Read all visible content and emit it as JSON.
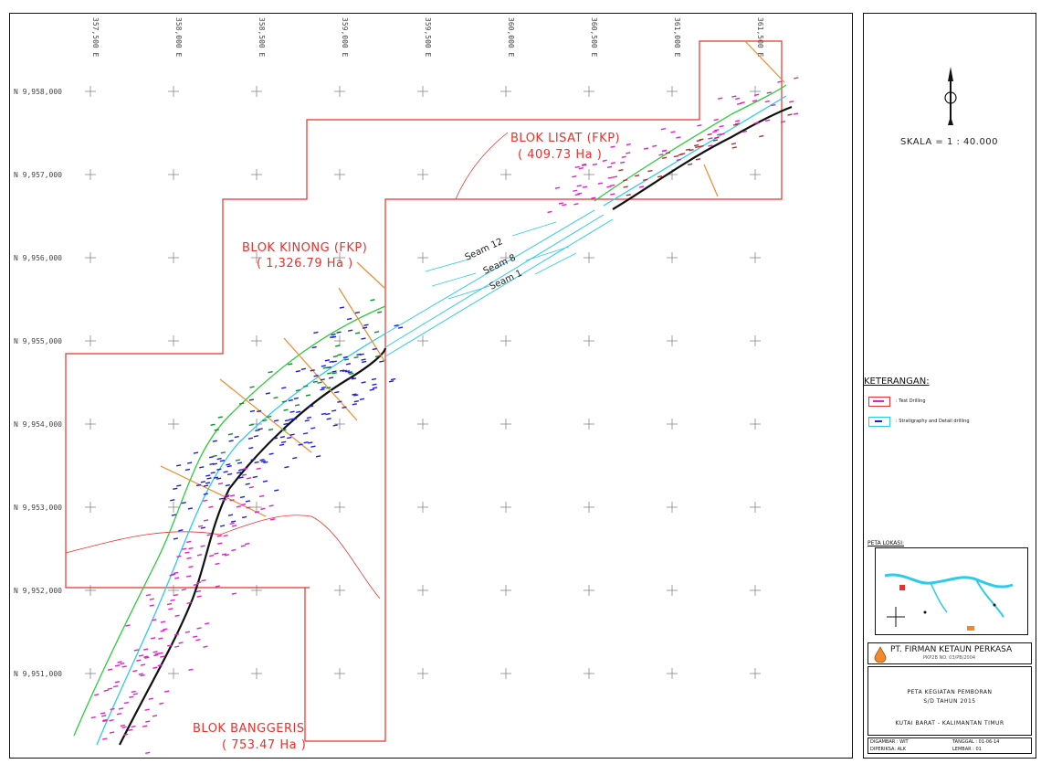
{
  "map": {
    "easting_labels": [
      "357,500 E",
      "358,000 E",
      "358,500 E",
      "359,000 E",
      "359,500 E",
      "360,000 E",
      "360,500 E",
      "361,000 E",
      "361,500 E"
    ],
    "northing_labels": [
      "N 9,958,000",
      "N 9,957,000",
      "N 9,956,000",
      "N 9,955,000",
      "N 9,954,000",
      "N 9,953,000",
      "N 9,952,000",
      "N 9,951,000"
    ],
    "blocks": [
      {
        "name": "BLOK LISAT (FKP)",
        "area": "( 409.73 Ha )"
      },
      {
        "name": "BLOK KINONG (FKP)",
        "area": "( 1,326.79 Ha )"
      },
      {
        "name": "BLOK BANGGERIS",
        "area": "( 753.47 Ha )"
      }
    ],
    "seams": [
      "Seam 12",
      "Seam 8",
      "Seam 1"
    ],
    "colors": {
      "boundary": "#e8322c",
      "seam_line": "#2ccbe8",
      "river": "#111111",
      "section_line": "#f08a2c",
      "green_line": "#2bcc3a",
      "magenta": "#e022c8",
      "blue": "#1f1fd6"
    }
  },
  "legend": {
    "north_arrow_icon": "north-arrow-icon",
    "scale": "SKALA = 1 : 40.000",
    "title": "KETERANGAN:",
    "items": [
      {
        "label": ": Test Drilling"
      },
      {
        "label": ": Stratigraphy and Detail drilling"
      }
    ],
    "inset_title": "PETA LOKASI:",
    "company": "PT. FIRMAN KETAUN PERKASA",
    "company_sub": "PKP2B NO. 03/PB/2004",
    "map_title_1": "PETA KEGIATAN PEMBORAN",
    "map_title_2": "S/D TAHUN 2015",
    "region": "KUTAI BARAT - KALIMANTAN TIMUR",
    "signoff": {
      "drawn_label": "DIGAMBAR : WIT",
      "date_label": "TANGGAL : 01-06-14",
      "checked_label": "DIPERIKSA: ALK",
      "sheet_label": "LEMBAR : 01"
    }
  }
}
